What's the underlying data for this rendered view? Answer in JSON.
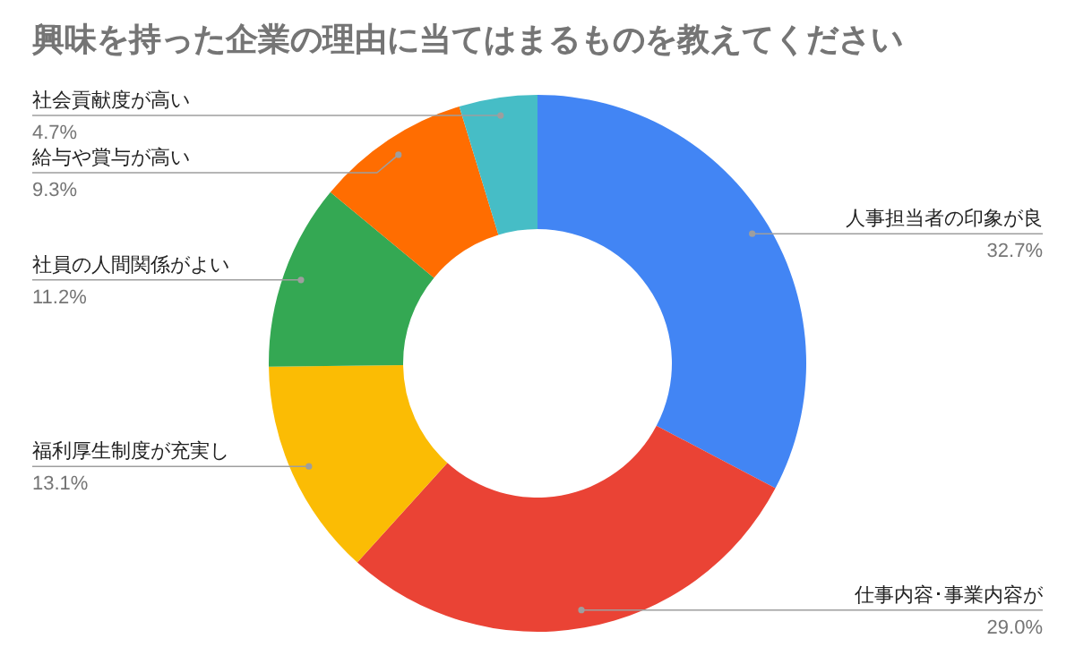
{
  "chart_data": {
    "type": "donut",
    "title": "興味を持った企業の理由に当てはまるものを教えてください",
    "categories": [
      "人事担当者の印象が良",
      "仕事内容･事業内容が",
      "福利厚生制度が充実し",
      "社員の人間関係がよい",
      "給与や賞与が高い",
      "社会貢献度が高い"
    ],
    "values": [
      32.7,
      29.0,
      13.1,
      11.2,
      9.3,
      4.7
    ],
    "colors": [
      "#4285f4",
      "#ea4335",
      "#fbbc04",
      "#34a853",
      "#ff6d01",
      "#46bdc6"
    ],
    "value_labels": [
      "32.7%",
      "29.0%",
      "13.1%",
      "11.2%",
      "9.3%",
      "4.7%"
    ]
  }
}
